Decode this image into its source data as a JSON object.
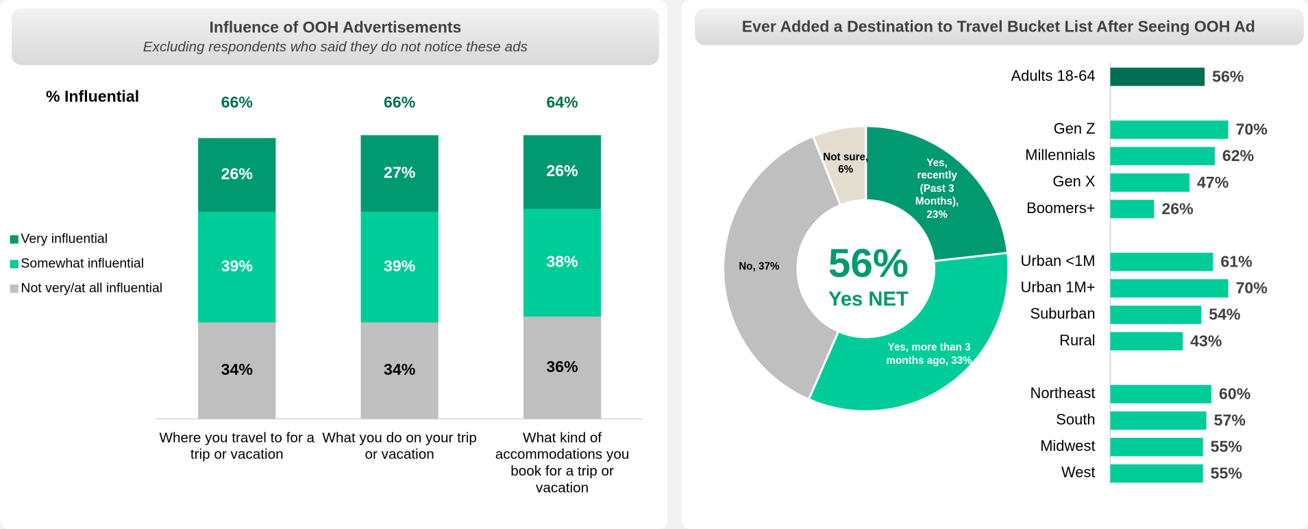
{
  "chart_data": [
    {
      "type": "stacked_bar",
      "title": "Influence of OOH Advertisements",
      "subtitle": "Excluding respondents who said they do not notice these ads",
      "y_label": "% Influential",
      "categories": [
        "Where you travel to for a trip or vacation",
        "What you do on your trip or vacation",
        "What kind of accommodations you book for a trip or vacation"
      ],
      "net_values": [
        66,
        66,
        64
      ],
      "net_value_labels": [
        "66%",
        "66%",
        "64%"
      ],
      "legend": "left",
      "series": [
        {
          "name": "Not very/at all influential",
          "color": "#bfbfbf",
          "label_color": "#000000",
          "values": [
            34,
            34,
            36
          ],
          "value_labels": [
            "34%",
            "34%",
            "36%"
          ]
        },
        {
          "name": "Somewhat influential",
          "color": "#00cc99",
          "label_color": "#ffffff",
          "values": [
            39,
            39,
            38
          ],
          "value_labels": [
            "39%",
            "39%",
            "38%"
          ]
        },
        {
          "name": "Very influential",
          "color": "#009970",
          "label_color": "#ffffff",
          "values": [
            26,
            27,
            26
          ],
          "value_labels": [
            "26%",
            "27%",
            "26%"
          ]
        }
      ]
    },
    {
      "type": "donut",
      "title": "Ever Added a Destination to Travel Bucket List After Seeing OOH Ad",
      "values": [
        23,
        33,
        37,
        6
      ],
      "value_labels": [
        "Yes, recently (Past 3 Months), 23%",
        "Yes, more than 3 months ago, 33%",
        "No, 37%",
        "Not sure, 6%"
      ],
      "colors": [
        "#009970",
        "#00cc99",
        "#bfbfbf",
        "#e3ddd0"
      ],
      "label_colors": [
        "#ffffff",
        "#ffffff",
        "#000000",
        "#000000"
      ],
      "center_value": 56,
      "center_value_label": "56%",
      "center_label": "Yes NET"
    },
    {
      "type": "hbar",
      "categories": [
        "Adults 18-64",
        null,
        "Gen Z",
        "Millennials",
        "Gen X",
        "Boomers+",
        null,
        "Urban <1M",
        "Urban 1M+",
        "Suburban",
        "Rural",
        null,
        "Northeast",
        "South",
        "Midwest",
        "West"
      ],
      "values": [
        56,
        null,
        70,
        62,
        47,
        26,
        null,
        61,
        70,
        54,
        43,
        null,
        60,
        57,
        55,
        55
      ],
      "value_labels": [
        "56%",
        null,
        "70%",
        "62%",
        "47%",
        "26%",
        null,
        "61%",
        "70%",
        "54%",
        "43%",
        null,
        "60%",
        "57%",
        "55%",
        "55%"
      ],
      "colors": [
        "#006e55",
        null,
        "#00cc99",
        "#00cc99",
        "#00cc99",
        "#00cc99",
        null,
        "#00cc99",
        "#00cc99",
        "#00cc99",
        "#00cc99",
        null,
        "#00cc99",
        "#00cc99",
        "#00cc99",
        "#00cc99"
      ]
    }
  ]
}
